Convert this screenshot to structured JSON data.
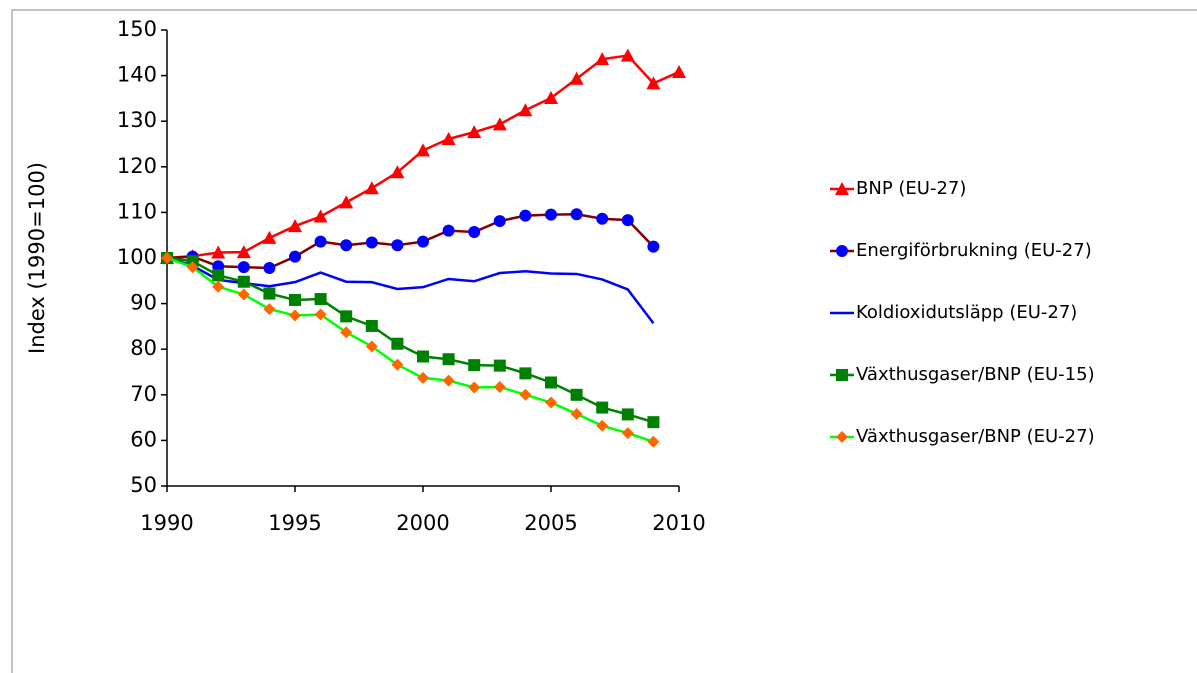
{
  "chart_data": {
    "type": "line",
    "y_label": "Index (1990=100)",
    "x": [
      1990,
      1991,
      1992,
      1993,
      1994,
      1995,
      1996,
      1997,
      1998,
      1999,
      2000,
      2001,
      2002,
      2003,
      2004,
      2005,
      2006,
      2007,
      2008,
      2009,
      2010
    ],
    "series": [
      {
        "name": "BNP (EU-27)",
        "color": "#ff0000",
        "marker": "triangle",
        "marker_color": "#ff0000",
        "values": [
          100,
          100.4,
          101.2,
          101.3,
          104.4,
          107,
          109.1,
          112.2,
          115.3,
          118.8,
          123.6,
          126.1,
          127.6,
          129.3,
          132.4,
          135.1,
          139.3,
          143.6,
          144.4,
          138.3,
          140.8
        ]
      },
      {
        "name": "Energiförbrukning (EU-27)",
        "color": "#800000",
        "marker": "circle",
        "marker_color": "#0000ff",
        "values": [
          100,
          100.3,
          98.2,
          98,
          97.8,
          100.3,
          103.6,
          102.8,
          103.4,
          102.8,
          103.6,
          106,
          105.7,
          108.1,
          109.3,
          109.5,
          109.6,
          108.6,
          108.3,
          102.5,
          null
        ]
      },
      {
        "name": "Koldioxidutsläpp (EU-27)",
        "color": "#0000ff",
        "marker": "none",
        "marker_color": "#0000ff",
        "values": [
          100,
          98.3,
          95.2,
          94.5,
          93.8,
          94.7,
          96.8,
          94.8,
          94.7,
          93.2,
          93.6,
          95.4,
          94.9,
          96.7,
          97.1,
          96.6,
          96.5,
          95.3,
          93.1,
          85.7,
          null
        ]
      },
      {
        "name": "Växthusgaser/BNP (EU-15)",
        "color": "#008000",
        "marker": "square",
        "marker_color": "#008000",
        "values": [
          100,
          99.3,
          96.2,
          94.8,
          92.2,
          90.8,
          91,
          87.2,
          85.1,
          81.2,
          78.4,
          77.8,
          76.5,
          76.4,
          74.7,
          72.7,
          70,
          67.2,
          65.7,
          64,
          null
        ]
      },
      {
        "name": "Växthusgaser/BNP (EU-27)",
        "color": "#00ff00",
        "marker": "diamond",
        "marker_color": "#ff6600",
        "values": [
          100,
          98,
          93.7,
          92,
          88.8,
          87.4,
          87.6,
          83.7,
          80.6,
          76.6,
          73.7,
          73.1,
          71.6,
          71.7,
          70,
          68.3,
          65.8,
          63.2,
          61.6,
          59.7,
          null
        ]
      }
    ],
    "xlim": [
      1990,
      2010
    ],
    "xticks": [
      1990,
      1995,
      2000,
      2005,
      2010
    ],
    "ylim": [
      50,
      150
    ],
    "yticks": [
      50,
      60,
      70,
      80,
      90,
      100,
      110,
      120,
      130,
      140,
      150
    ],
    "grid": false,
    "legend": "right"
  }
}
